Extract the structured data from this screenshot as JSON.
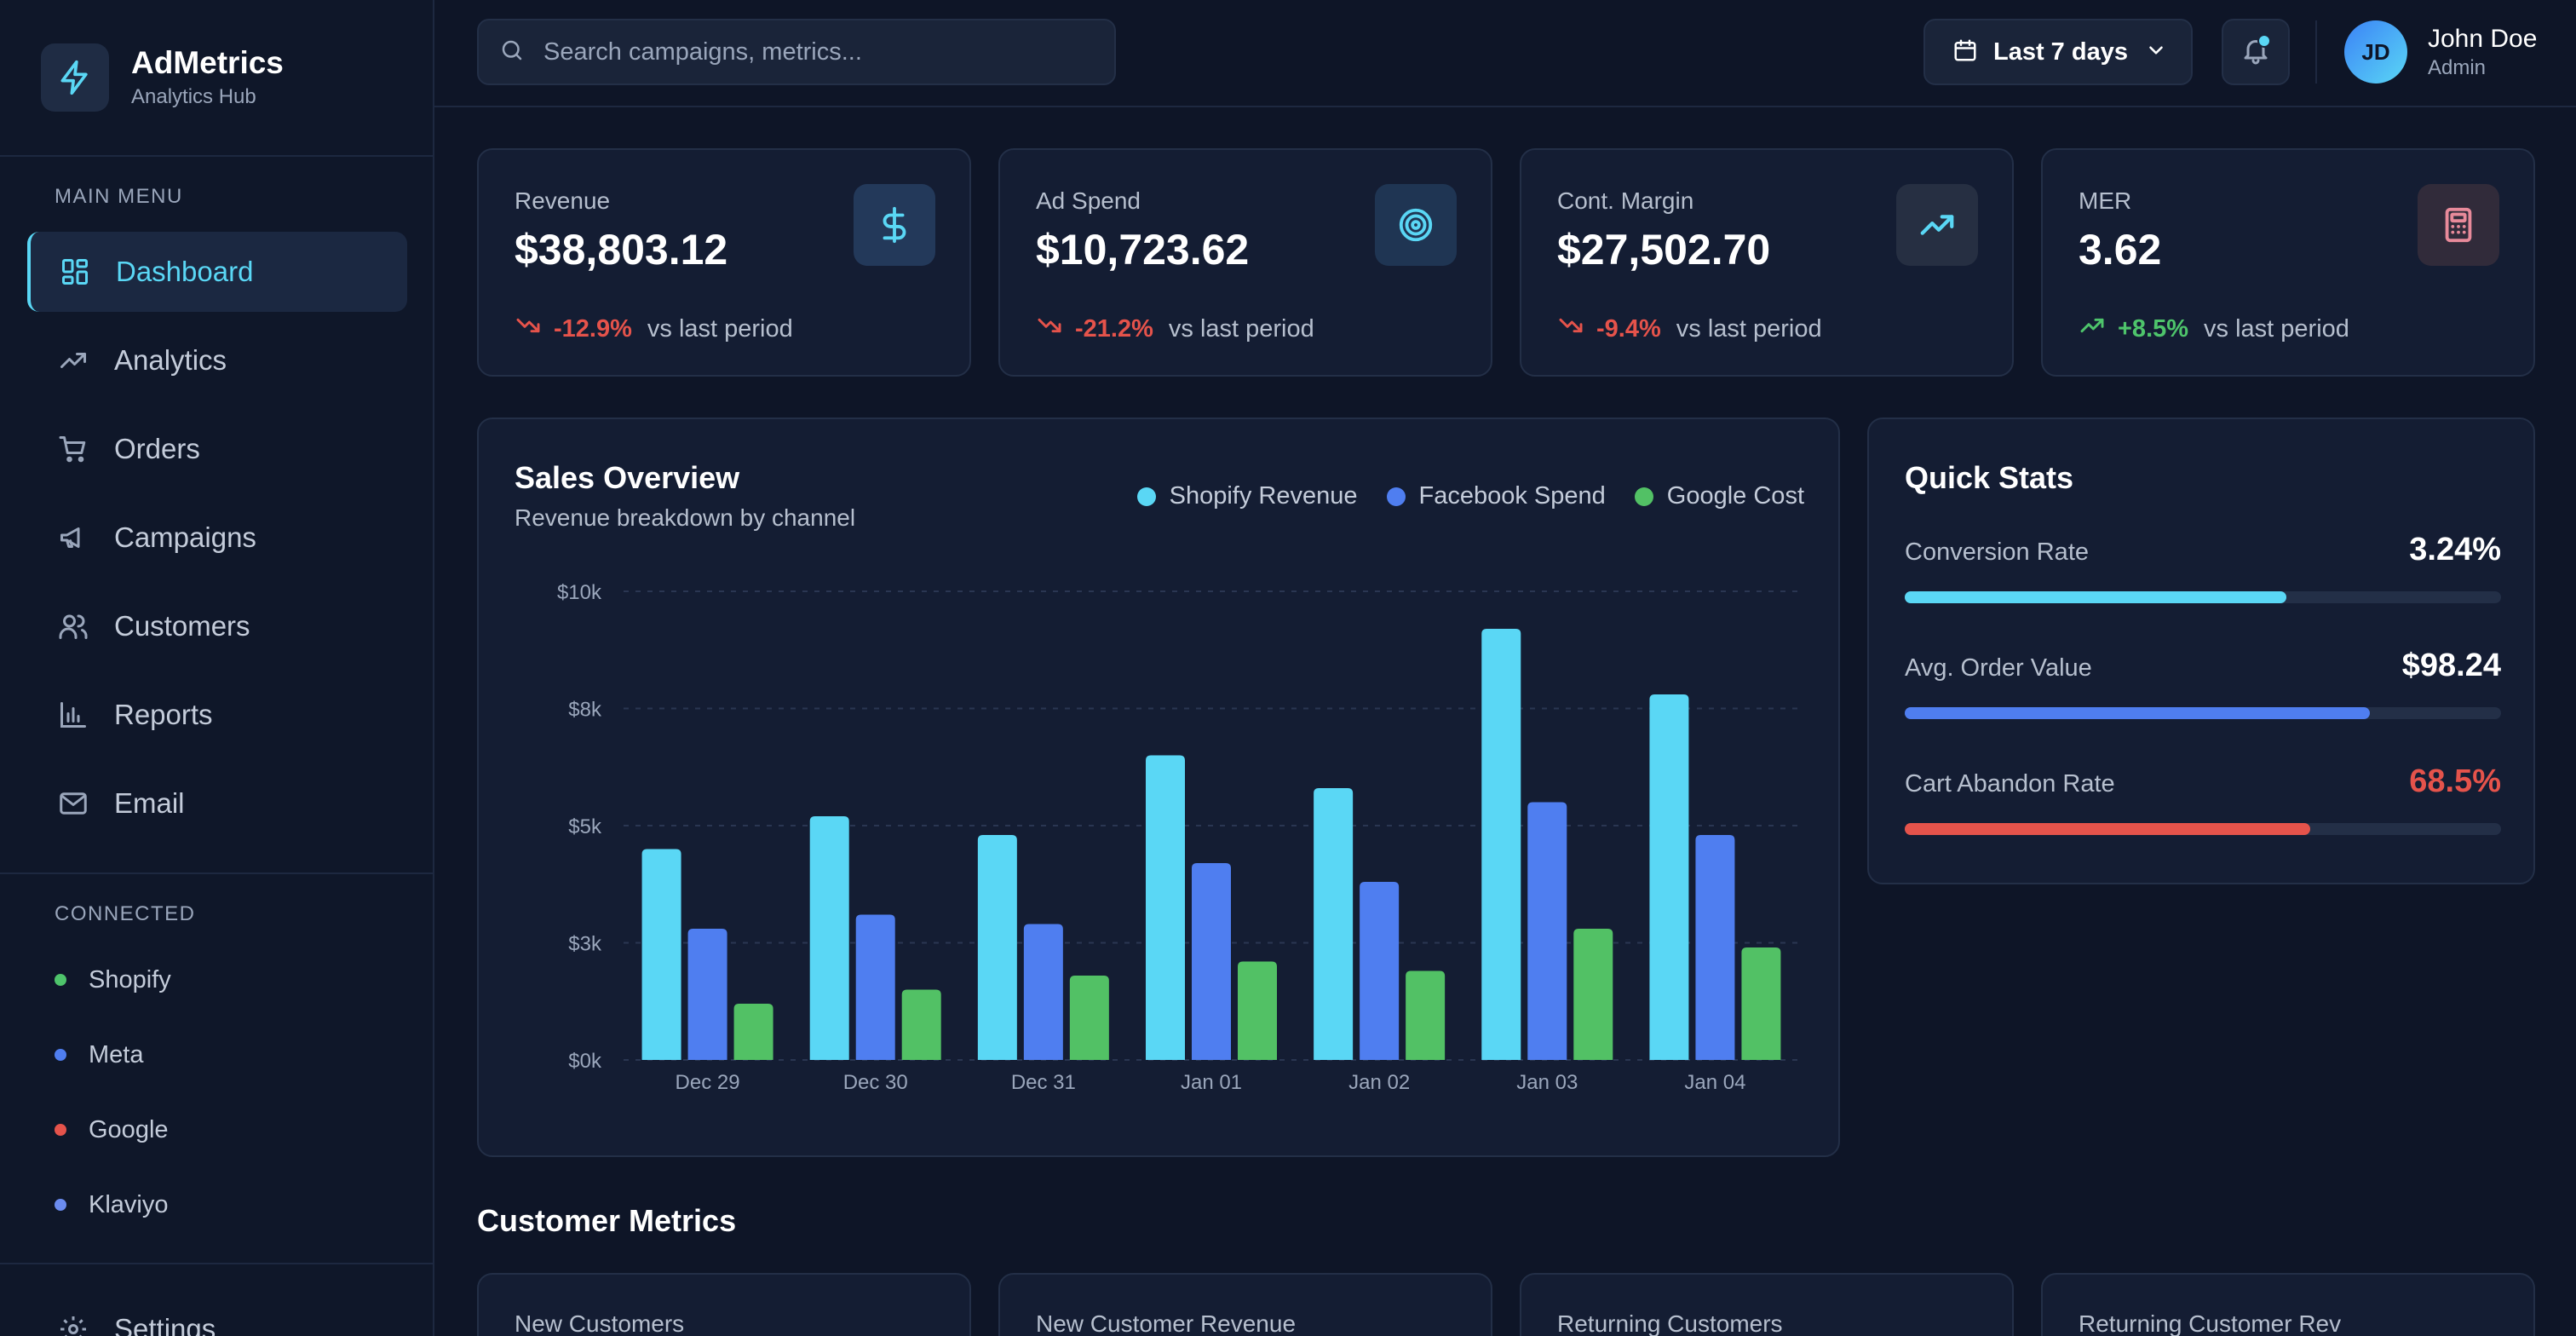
{
  "brand": {
    "name": "AdMetrics",
    "subtitle": "Analytics Hub",
    "logo_icon": "lightning-icon"
  },
  "sidebar": {
    "main_menu_title": "MAIN MENU",
    "items": [
      {
        "label": "Dashboard",
        "icon": "dashboard-icon",
        "active": true
      },
      {
        "label": "Analytics",
        "icon": "trending-up-icon"
      },
      {
        "label": "Orders",
        "icon": "cart-icon"
      },
      {
        "label": "Campaigns",
        "icon": "megaphone-icon"
      },
      {
        "label": "Customers",
        "icon": "users-icon"
      },
      {
        "label": "Reports",
        "icon": "bar-chart-icon"
      },
      {
        "label": "Email",
        "icon": "mail-icon"
      }
    ],
    "connected_title": "CONNECTED",
    "connected": [
      {
        "label": "Shopify",
        "color": "#4ec46b"
      },
      {
        "label": "Meta",
        "color": "#4f7ef0"
      },
      {
        "label": "Google",
        "color": "#e5534b"
      },
      {
        "label": "Klaviyo",
        "color": "#6b8cf0"
      }
    ],
    "settings_label": "Settings"
  },
  "header": {
    "search_placeholder": "Search campaigns, metrics...",
    "date_range": "Last 7 days",
    "user_initials": "JD",
    "user_name": "John Doe",
    "user_role": "Admin"
  },
  "kpis": [
    {
      "label": "Revenue",
      "value": "$38,803.12",
      "change": "-12.9%",
      "period": "vs last period",
      "trend": "down",
      "icon": "dollar-icon",
      "icon_color": "#5ad7f5",
      "icon_bg": "#23395a"
    },
    {
      "label": "Ad Spend",
      "value": "$10,723.62",
      "change": "-21.2%",
      "period": "vs last period",
      "trend": "down",
      "icon": "target-icon",
      "icon_color": "#5ad7f5",
      "icon_bg": "#1f3553"
    },
    {
      "label": "Cont. Margin",
      "value": "$27,502.70",
      "change": "-9.4%",
      "period": "vs last period",
      "trend": "down",
      "icon": "trending-up-icon",
      "icon_color": "#5ad7f5",
      "icon_bg": "#262f42"
    },
    {
      "label": "MER",
      "value": "3.62",
      "change": "+8.5%",
      "period": "vs last period",
      "trend": "up",
      "icon": "calculator-icon",
      "icon_color": "#e88a9a",
      "icon_bg": "#312b3a"
    }
  ],
  "colors": {
    "up": "#4ec46b",
    "down": "#e5534b",
    "accent": "#5ad7f5"
  },
  "sales": {
    "title": "Sales Overview",
    "subtitle": "Revenue breakdown by channel"
  },
  "chart_data": {
    "type": "bar",
    "categories": [
      "Dec 29",
      "Dec 30",
      "Dec 31",
      "Jan 01",
      "Jan 02",
      "Jan 03",
      "Jan 04"
    ],
    "series": [
      {
        "name": "Shopify Revenue",
        "color": "#5ad7f5",
        "values": [
          4500,
          5200,
          4800,
          6500,
          5800,
          9200,
          7800
        ]
      },
      {
        "name": "Facebook Spend",
        "color": "#4f7ef0",
        "values": [
          2800,
          3100,
          2900,
          4200,
          3800,
          5500,
          4800
        ]
      },
      {
        "name": "Google Cost",
        "color": "#52c165",
        "values": [
          1200,
          1500,
          1800,
          2100,
          1900,
          2800,
          2400
        ]
      }
    ],
    "yticks": [
      "$0k",
      "$3k",
      "$5k",
      "$8k",
      "$10k"
    ],
    "ytick_values": [
      0,
      2500,
      5000,
      7500,
      10000
    ],
    "ylim": [
      0,
      10000
    ],
    "grid": true,
    "legend": "top-right"
  },
  "quick_stats": {
    "title": "Quick Stats",
    "items": [
      {
        "label": "Conversion Rate",
        "value": "3.24%",
        "fill": 0.64,
        "color": "#5ad7f5",
        "value_color": "#ffffff"
      },
      {
        "label": "Avg. Order Value",
        "value": "$98.24",
        "fill": 0.78,
        "color": "#4f7ef0",
        "value_color": "#ffffff"
      },
      {
        "label": "Cart Abandon Rate",
        "value": "68.5%",
        "fill": 0.68,
        "color": "#e5534b",
        "value_color": "#e5534b"
      }
    ]
  },
  "customer_metrics": {
    "title": "Customer Metrics",
    "cards": [
      "New Customers",
      "New Customer Revenue",
      "Returning Customers",
      "Returning Customer Rev"
    ]
  }
}
